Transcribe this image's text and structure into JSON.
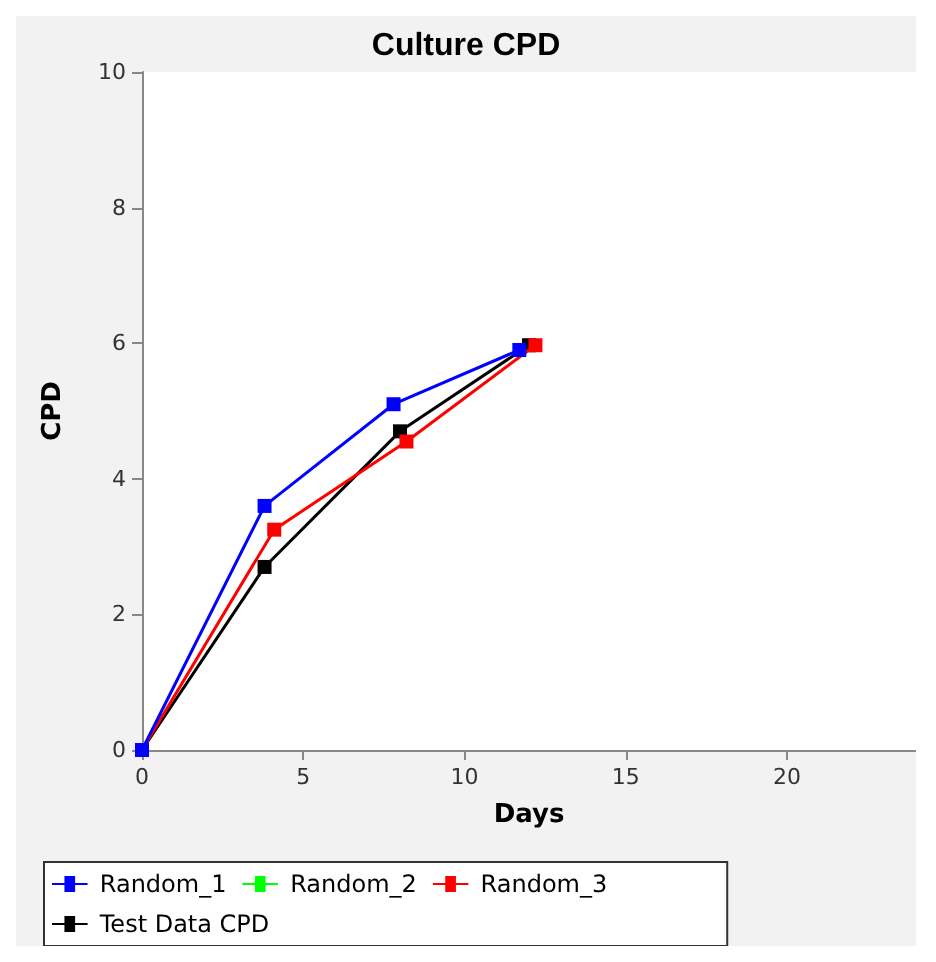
{
  "chart_data": {
    "type": "line",
    "title": "Culture CPD",
    "xlabel": "Days",
    "ylabel": "CPD",
    "xlim": [
      0,
      24
    ],
    "xticks": [
      0,
      5,
      10,
      15,
      20
    ],
    "ylim": [
      0,
      10
    ],
    "yticks": [
      0,
      2,
      4,
      6,
      8,
      10
    ],
    "grid": false,
    "legend": "bottom",
    "marker": "square",
    "line_style": "solid",
    "series": [
      {
        "name": "Random_1",
        "color": "#0000ff",
        "x": [
          0,
          3.8,
          7.8,
          11.7
        ],
        "values": [
          0,
          3.6,
          5.1,
          5.9
        ]
      },
      {
        "name": "Random_2",
        "color": "#00ff00"
      },
      {
        "name": "Random_3",
        "color": "#ff0000",
        "x": [
          0,
          4.1,
          8.2,
          12.2
        ],
        "values": [
          0,
          3.25,
          4.55,
          5.97
        ]
      },
      {
        "name": "Test Data CPD",
        "color": "#000000",
        "x": [
          0,
          3.8,
          8.0,
          12.0
        ],
        "values": [
          0,
          2.7,
          4.7,
          5.97
        ]
      }
    ]
  }
}
